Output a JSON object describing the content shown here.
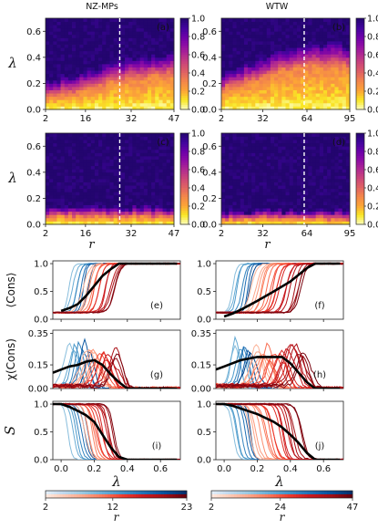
{
  "column_titles": [
    "NZ-MPs",
    "WTW"
  ],
  "colors": {
    "plasma": [
      "#fcfdbf",
      "#f9e724",
      "#fca636",
      "#f48849",
      "#e16462",
      "#cc4778",
      "#b12a90",
      "#8f0da4",
      "#6a00a8",
      "#3f049c",
      "#23056e"
    ],
    "blues": [
      "#f3f8fc",
      "#c6dbef",
      "#9ecae1",
      "#6baed6",
      "#4292c6",
      "#2171b5",
      "#08519c",
      "#08306b"
    ],
    "reds": [
      "#fff5f0",
      "#fdd0bd",
      "#fcaa8e",
      "#fb7a5b",
      "#ef3b2c",
      "#cb181d",
      "#a50f15",
      "#67000d"
    ],
    "mean_line": "#000000",
    "threshold_line": "#ffffff"
  },
  "chart_data": [
    {
      "type": "heatmap",
      "panel": "(a)",
      "column": "NZ-MPs",
      "xlabel": "",
      "ylabel": "λ",
      "xlim": [
        2,
        47
      ],
      "ylim": [
        0,
        0.7
      ],
      "xticks": [
        "2",
        "16",
        "32",
        "47"
      ],
      "yticks": [
        "0.0",
        "0.2",
        "0.4",
        "0.6"
      ],
      "vline_x": 28,
      "transition_lambda": {
        "r": [
          2,
          10,
          20,
          28,
          36,
          47
        ],
        "onset": [
          0.1,
          0.12,
          0.17,
          0.22,
          0.24,
          0.25
        ],
        "saturation": [
          0.22,
          0.26,
          0.33,
          0.38,
          0.42,
          0.43
        ]
      },
      "colorbar": {
        "range": [
          0,
          1.0
        ],
        "ticks": [
          "0.0",
          "0.2",
          "0.4",
          "0.6",
          "0.8",
          "1.0"
        ]
      }
    },
    {
      "type": "heatmap",
      "panel": "(b)",
      "column": "WTW",
      "xlabel": "",
      "ylabel": "",
      "xlim": [
        2,
        95
      ],
      "ylim": [
        0,
        0.7
      ],
      "xticks": [
        "2",
        "32",
        "64",
        "95"
      ],
      "yticks": [
        "0.0",
        "0.2",
        "0.4",
        "0.6"
      ],
      "vline_x": 62,
      "transition_lambda": {
        "r": [
          2,
          20,
          40,
          62,
          80,
          95
        ],
        "onset": [
          0.14,
          0.2,
          0.27,
          0.32,
          0.33,
          0.32
        ],
        "saturation": [
          0.28,
          0.36,
          0.44,
          0.5,
          0.52,
          0.5
        ]
      },
      "colorbar": {
        "range": [
          0,
          1.0
        ],
        "ticks": [
          "0.0",
          "0.2",
          "0.4",
          "0.6",
          "0.8",
          "1.0"
        ]
      }
    },
    {
      "type": "heatmap",
      "panel": "(c)",
      "column": "NZ-MPs",
      "xlabel": "r",
      "ylabel": "λ",
      "xlim": [
        2,
        47
      ],
      "ylim": [
        0,
        0.7
      ],
      "xticks": [
        "2",
        "16",
        "32",
        "47"
      ],
      "yticks": [
        "0.0",
        "0.2",
        "0.4",
        "0.6"
      ],
      "vline_x": 28,
      "transition_lambda": {
        "r": [
          2,
          47
        ],
        "onset": [
          0.06,
          0.06
        ],
        "saturation": [
          0.14,
          0.14
        ]
      },
      "colorbar": {
        "range": [
          0,
          1.0
        ],
        "ticks": [
          "0.0",
          "0.2",
          "0.4",
          "0.6",
          "0.8",
          "1.0"
        ]
      }
    },
    {
      "type": "heatmap",
      "panel": "(d)",
      "column": "WTW",
      "xlabel": "r",
      "ylabel": "",
      "xlim": [
        2,
        95
      ],
      "ylim": [
        0,
        0.7
      ],
      "xticks": [
        "2",
        "32",
        "64",
        "95"
      ],
      "yticks": [
        "0.0",
        "0.2",
        "0.4",
        "0.6"
      ],
      "vline_x": 62,
      "transition_lambda": {
        "r": [
          2,
          95
        ],
        "onset": [
          0.04,
          0.04
        ],
        "saturation": [
          0.11,
          0.11
        ]
      },
      "colorbar": {
        "range": [
          0,
          1.0
        ],
        "ticks": [
          "0.0",
          "0.2",
          "0.4",
          "0.6",
          "0.8",
          "1.0"
        ]
      }
    },
    {
      "type": "line",
      "panel": "(e)",
      "column": "NZ-MPs",
      "ylabel": "⟨Cons⟩",
      "xlabel": "",
      "xlim": [
        -0.05,
        0.72
      ],
      "ylim": [
        0,
        1.05
      ],
      "yticks": [
        "0.0",
        "0.5",
        "1.0"
      ],
      "mean": {
        "x": [
          0,
          0.05,
          0.1,
          0.15,
          0.2,
          0.25,
          0.3,
          0.35,
          0.4,
          0.5,
          0.6,
          0.7
        ],
        "y": [
          0.15,
          0.2,
          0.27,
          0.42,
          0.6,
          0.78,
          0.9,
          1.0,
          1.0,
          1.0,
          1.0,
          1.0
        ]
      }
    },
    {
      "type": "line",
      "panel": "(f)",
      "column": "WTW",
      "ylabel": "",
      "xlabel": "",
      "xlim": [
        -0.05,
        0.72
      ],
      "ylim": [
        0,
        1.05
      ],
      "yticks": [
        "0.0",
        "0.5",
        "1.0"
      ],
      "mean": {
        "x": [
          0,
          0.05,
          0.1,
          0.15,
          0.2,
          0.3,
          0.4,
          0.45,
          0.5,
          0.55,
          0.6,
          0.7
        ],
        "y": [
          0.05,
          0.1,
          0.17,
          0.25,
          0.33,
          0.5,
          0.68,
          0.8,
          0.92,
          1.0,
          1.0,
          1.0
        ]
      }
    },
    {
      "type": "line",
      "panel": "(g)",
      "column": "NZ-MPs",
      "ylabel": "χ(Cons)",
      "xlabel": "",
      "xlim": [
        -0.05,
        0.72
      ],
      "ylim": [
        0,
        0.37
      ],
      "yticks": [
        "0.00",
        "0.15",
        "0.35"
      ],
      "mean": {
        "x": [
          -0.05,
          0,
          0.05,
          0.1,
          0.15,
          0.2,
          0.25,
          0.3,
          0.35,
          0.4,
          0.5,
          0.7
        ],
        "y": [
          0.1,
          0.12,
          0.14,
          0.15,
          0.17,
          0.18,
          0.15,
          0.09,
          0.04,
          0.0,
          0.0,
          0.0
        ]
      }
    },
    {
      "type": "line",
      "panel": "(h)",
      "column": "WTW",
      "ylabel": "",
      "xlabel": "",
      "xlim": [
        -0.05,
        0.72
      ],
      "ylim": [
        0,
        0.37
      ],
      "yticks": [
        "0.00",
        "0.15",
        "0.35"
      ],
      "mean": {
        "x": [
          -0.05,
          0,
          0.05,
          0.1,
          0.15,
          0.2,
          0.3,
          0.35,
          0.4,
          0.45,
          0.5,
          0.55,
          0.7
        ],
        "y": [
          0.12,
          0.14,
          0.16,
          0.18,
          0.19,
          0.2,
          0.2,
          0.2,
          0.16,
          0.1,
          0.04,
          0.0,
          0.0
        ]
      }
    },
    {
      "type": "line",
      "panel": "(i)",
      "column": "NZ-MPs",
      "ylabel": "S",
      "xlabel": "λ",
      "xlim": [
        -0.05,
        0.72
      ],
      "ylim": [
        0,
        1.05
      ],
      "xticks": [
        "0.0",
        "0.2",
        "0.4",
        "0.6"
      ],
      "yticks": [
        "0.0",
        "0.5",
        "1.0"
      ],
      "mean": {
        "x": [
          -0.05,
          0,
          0.05,
          0.1,
          0.15,
          0.2,
          0.25,
          0.3,
          0.35,
          0.4,
          0.7
        ],
        "y": [
          1.0,
          1.0,
          0.95,
          0.88,
          0.8,
          0.68,
          0.45,
          0.22,
          0.05,
          0.0,
          0.0
        ]
      }
    },
    {
      "type": "line",
      "panel": "(j)",
      "column": "WTW",
      "ylabel": "",
      "xlabel": "λ",
      "xlim": [
        -0.05,
        0.72
      ],
      "ylim": [
        0,
        1.05
      ],
      "xticks": [
        "0.0",
        "0.2",
        "0.4",
        "0.6"
      ],
      "yticks": [
        "0.0",
        "0.5",
        "1.0"
      ],
      "mean": {
        "x": [
          -0.05,
          0,
          0.05,
          0.1,
          0.2,
          0.3,
          0.35,
          0.4,
          0.45,
          0.5,
          0.55,
          0.7
        ],
        "y": [
          1.0,
          1.0,
          0.97,
          0.92,
          0.82,
          0.68,
          0.58,
          0.45,
          0.3,
          0.12,
          0.0,
          0.0
        ]
      }
    },
    {
      "type": "colorbar",
      "panel": "legend-left",
      "xlabel": "r",
      "range": [
        2,
        23
      ],
      "ticks": [
        "2",
        "12",
        "23"
      ]
    },
    {
      "type": "colorbar",
      "panel": "legend-right",
      "xlabel": "r",
      "range": [
        2,
        47
      ],
      "ticks": [
        "2",
        "24",
        "47"
      ]
    }
  ]
}
